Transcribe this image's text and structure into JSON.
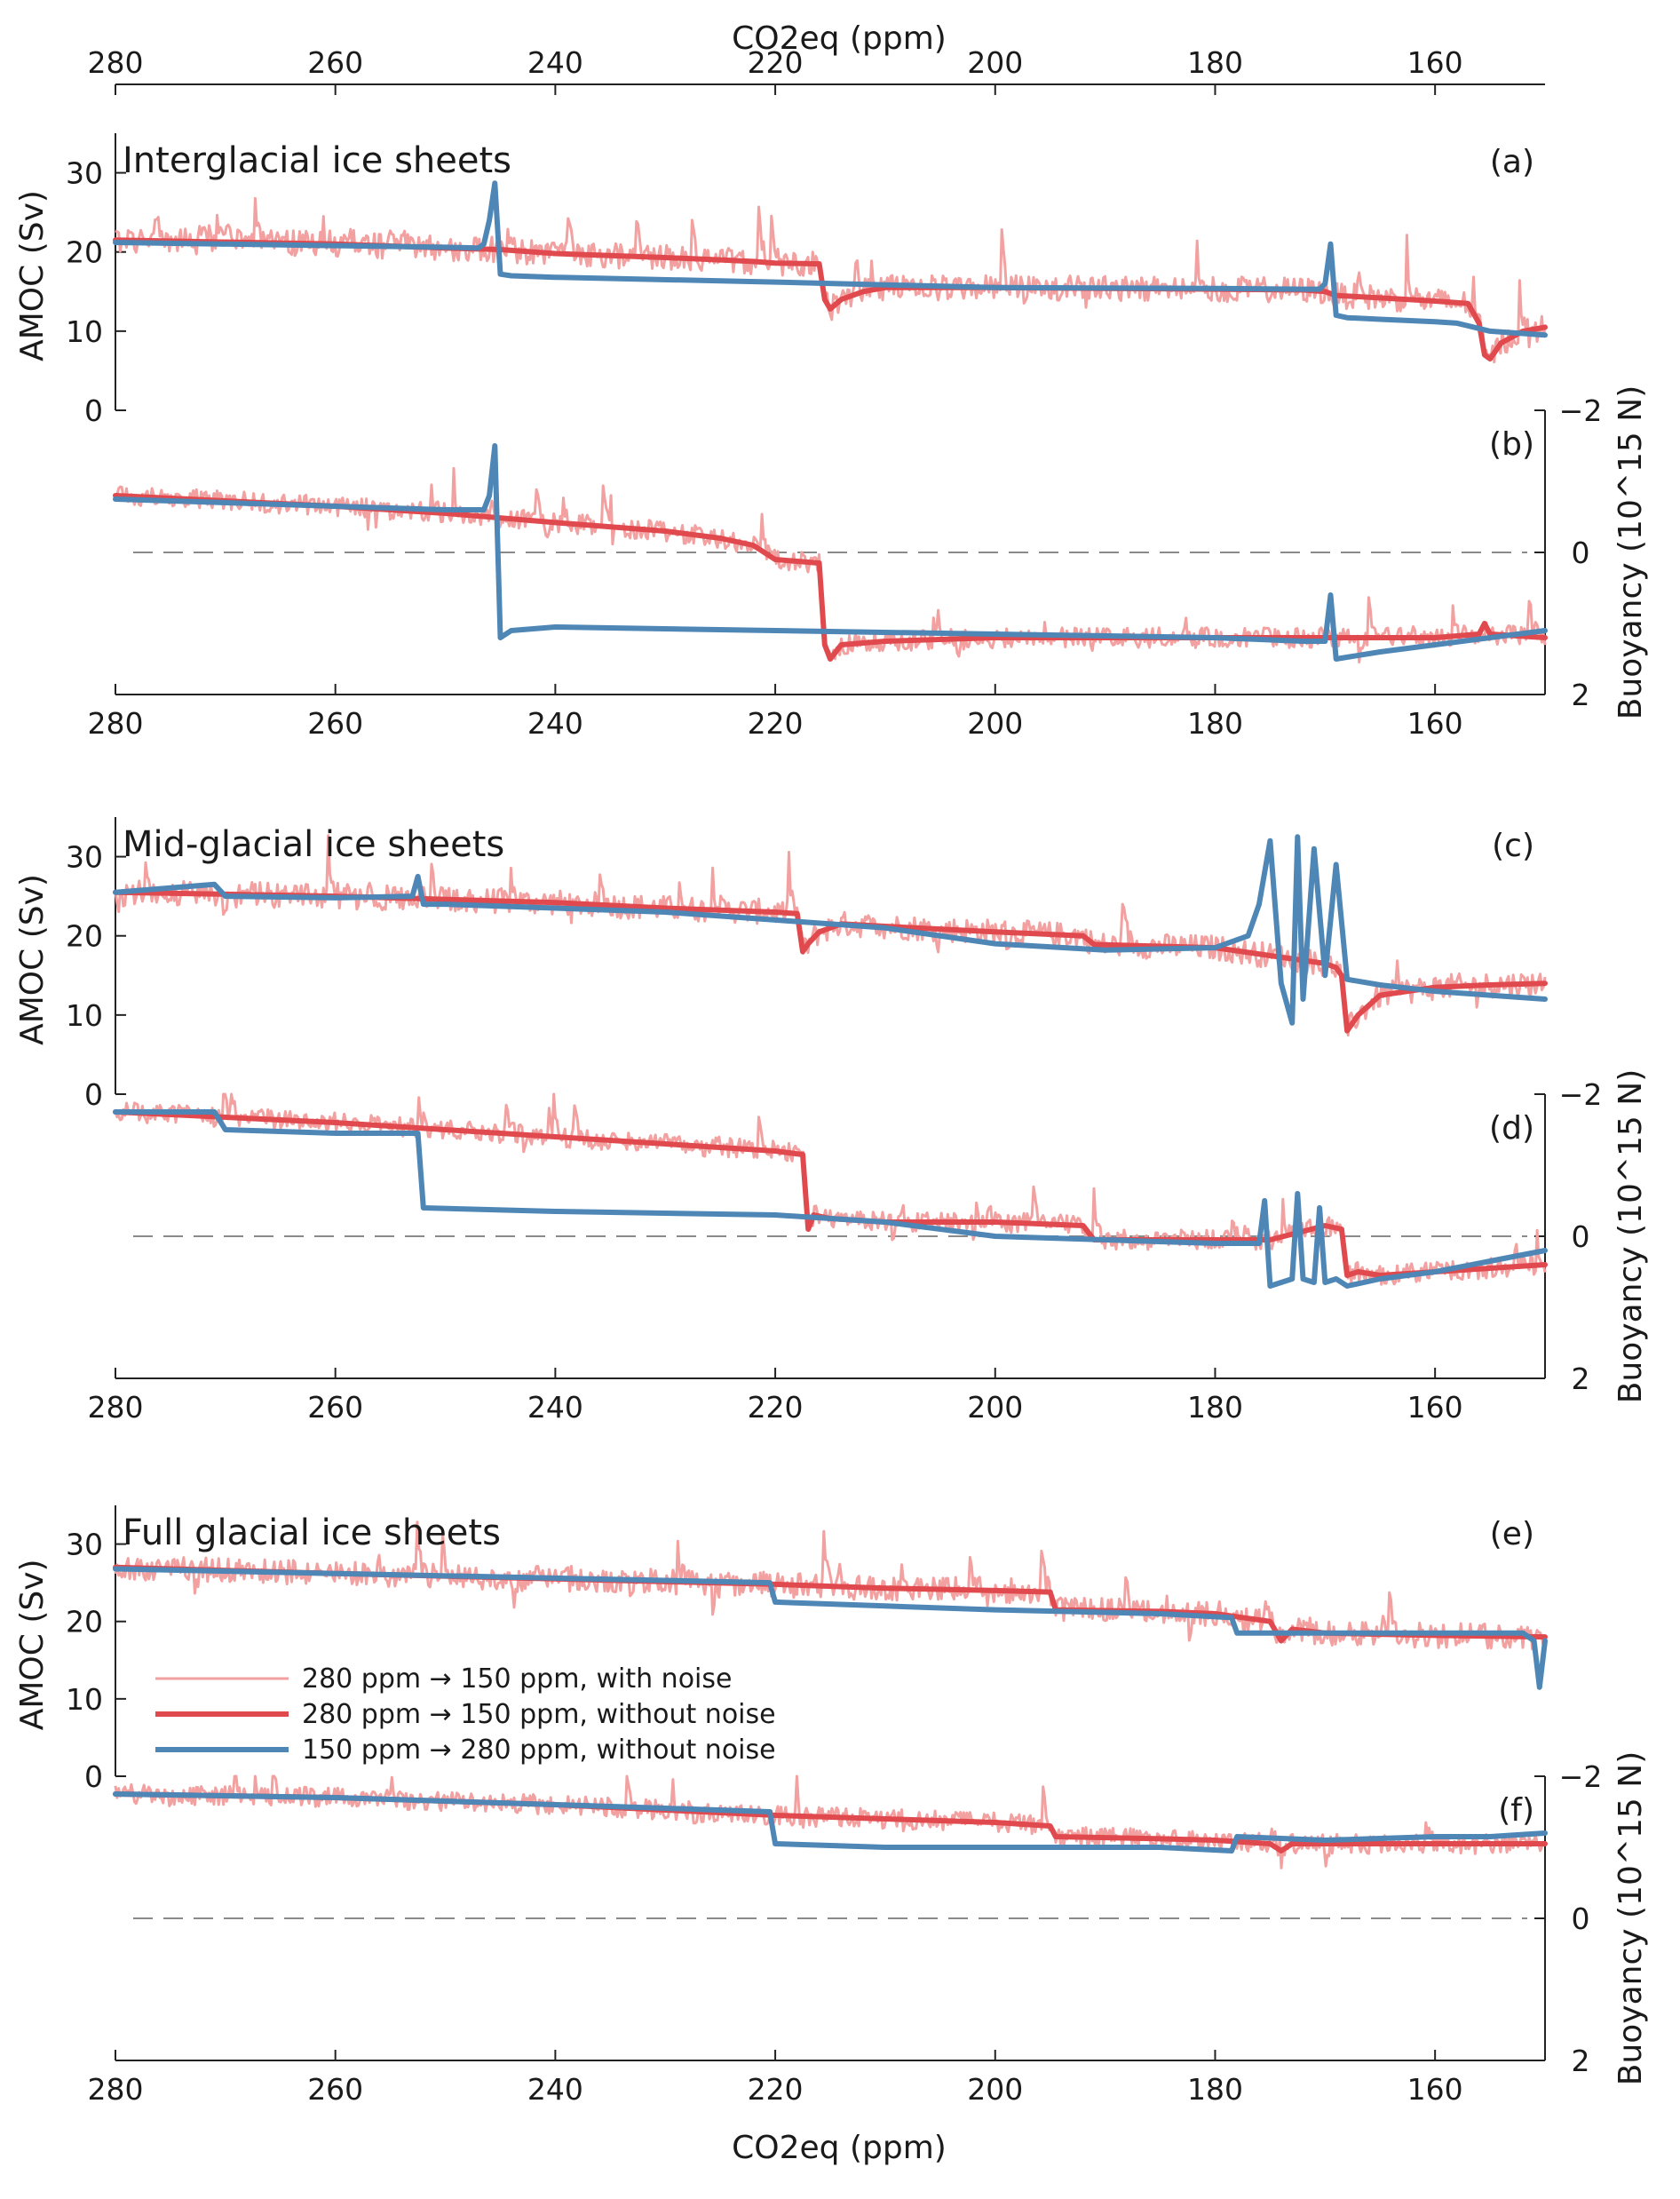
{
  "figure": {
    "top_xlabel": "CO2eq (ppm)",
    "bottom_xlabel": "CO2eq (ppm)",
    "amoc_ylabel": "AMOC (Sv)",
    "buoy_ylabel": "Buoyancy (10^15 N)"
  },
  "colors": {
    "noise": "#f2a0a0",
    "forward": "#e04a4e",
    "backward": "#4e86b6"
  },
  "legend": [
    {
      "label": "280 ppm → 150 ppm, with noise",
      "series": "noise"
    },
    {
      "label": "280 ppm → 150 ppm, without noise",
      "series": "forward"
    },
    {
      "label": "150 ppm → 280 ppm, without noise",
      "series": "backward"
    }
  ],
  "chart_data": [
    {
      "panel": "(a)",
      "type": "line",
      "title": "Interglacial ice sheets",
      "xlabel": "CO2eq (ppm)",
      "ylabel": "AMOC (Sv)",
      "xlim": [
        280,
        150
      ],
      "ylim": [
        0,
        35
      ],
      "xticks": [
        280,
        260,
        240,
        220,
        200,
        180,
        160
      ],
      "yticks": [
        0,
        10,
        20,
        30
      ],
      "series": [
        {
          "key": "forward",
          "name": "280 ppm → 150 ppm, without noise",
          "x": [
            280,
            260,
            250,
            245,
            240,
            230,
            225,
            222,
            220,
            216,
            215.5,
            215,
            214,
            212,
            210,
            200,
            190,
            180,
            172,
            170,
            169,
            165,
            160,
            157,
            156,
            155.5,
            155,
            154,
            152,
            150
          ],
          "y": [
            21.5,
            21,
            20.5,
            20.3,
            19.8,
            19.3,
            19,
            18.8,
            18.6,
            18.5,
            14,
            12.8,
            14,
            15,
            15.5,
            15.5,
            15.4,
            15.3,
            15.2,
            15,
            14.5,
            14.2,
            13.8,
            13.5,
            11,
            7,
            6.5,
            8.5,
            10,
            10.5
          ]
        },
        {
          "key": "backward",
          "name": "150 ppm → 280 ppm, without noise",
          "x": [
            150,
            155,
            158,
            160,
            165,
            168,
            169,
            169.5,
            170,
            170.5,
            172,
            180,
            200,
            220,
            240,
            244,
            245,
            245.5,
            246,
            246.5,
            247,
            250,
            260,
            280
          ],
          "y": [
            9.5,
            10,
            11,
            11.2,
            11.5,
            11.7,
            12,
            21,
            16,
            15.3,
            15.3,
            15.4,
            15.5,
            16.2,
            16.8,
            17,
            17.2,
            28.7,
            24,
            21,
            20.5,
            20.6,
            20.8,
            21.2
          ]
        }
      ]
    },
    {
      "panel": "(b)",
      "type": "line",
      "title": "",
      "xlabel": "",
      "ylabel": "Buoyancy (10^15 N)",
      "xlim": [
        280,
        150
      ],
      "ylim": [
        2,
        -2
      ],
      "xticks": [
        280,
        260,
        240,
        220,
        200,
        180,
        160
      ],
      "yticks": [
        -2,
        0,
        2
      ],
      "series": [
        {
          "key": "forward",
          "name": "280 ppm → 150 ppm, without noise",
          "x": [
            280,
            260,
            250,
            240,
            230,
            225,
            222,
            220,
            216,
            215.5,
            215,
            214,
            210,
            200,
            190,
            180,
            170,
            160,
            156,
            155.5,
            155,
            152,
            150
          ],
          "y": [
            -0.8,
            -0.65,
            -0.55,
            -0.42,
            -0.3,
            -0.2,
            -0.1,
            0.1,
            0.15,
            1.3,
            1.5,
            1.3,
            1.25,
            1.2,
            1.2,
            1.2,
            1.2,
            1.2,
            1.15,
            1.0,
            1.15,
            1.18,
            1.2
          ]
        },
        {
          "key": "backward",
          "name": "150 ppm → 280 ppm, without noise",
          "x": [
            150,
            155,
            160,
            165,
            169,
            169.5,
            170,
            170.5,
            172,
            180,
            200,
            220,
            240,
            244,
            245,
            245.5,
            246,
            246.5,
            250,
            260,
            280
          ],
          "y": [
            1.1,
            1.2,
            1.3,
            1.4,
            1.5,
            0.6,
            1.25,
            1.25,
            1.25,
            1.2,
            1.15,
            1.1,
            1.05,
            1.1,
            1.2,
            -1.5,
            -0.8,
            -0.6,
            -0.6,
            -0.65,
            -0.75
          ]
        }
      ]
    },
    {
      "panel": "(c)",
      "type": "line",
      "title": "Mid-glacial ice sheets",
      "xlabel": "",
      "ylabel": "AMOC (Sv)",
      "xlim": [
        280,
        150
      ],
      "ylim": [
        0,
        35
      ],
      "xticks": [
        280,
        260,
        240,
        220,
        200,
        180,
        160
      ],
      "yticks": [
        0,
        10,
        20,
        30
      ],
      "series": [
        {
          "key": "forward",
          "name": "280 ppm → 150 ppm, without noise",
          "x": [
            280,
            260,
            240,
            230,
            220,
            218,
            217.5,
            217,
            216,
            214,
            210,
            200,
            192,
            191,
            180,
            175,
            170,
            169,
            168.5,
            168,
            167,
            165,
            160,
            155,
            150
          ],
          "y": [
            25.5,
            25,
            24.2,
            23.5,
            23,
            22.8,
            18,
            19,
            20.5,
            21.5,
            21.2,
            20.5,
            20,
            18.9,
            18.5,
            17.5,
            16.5,
            16,
            15,
            8,
            10,
            12.5,
            13.5,
            13.8,
            14
          ]
        },
        {
          "key": "backward",
          "name": "150 ppm → 280 ppm, without noise",
          "x": [
            150,
            155,
            160,
            165,
            168,
            169,
            170,
            171,
            172,
            172.5,
            173,
            174,
            175,
            176,
            177,
            180,
            190,
            200,
            210,
            220,
            230,
            240,
            250,
            252,
            252.5,
            253,
            260,
            270,
            271,
            280
          ],
          "y": [
            12,
            12.5,
            13,
            13.8,
            14.5,
            29,
            15,
            31,
            12,
            32.5,
            9,
            14,
            32,
            24,
            20,
            18.5,
            18.2,
            19,
            21,
            22,
            23,
            23.5,
            24,
            24,
            27.5,
            25,
            24.8,
            25,
            26.5,
            25.5
          ]
        }
      ]
    },
    {
      "panel": "(d)",
      "type": "line",
      "title": "",
      "xlabel": "",
      "ylabel": "Buoyancy (10^15 N)",
      "xlim": [
        280,
        150
      ],
      "ylim": [
        2,
        -2
      ],
      "xticks": [
        280,
        260,
        240,
        220,
        200,
        180,
        160
      ],
      "yticks": [
        -2,
        0,
        2
      ],
      "series": [
        {
          "key": "forward",
          "name": "280 ppm → 150 ppm, without noise",
          "x": [
            280,
            260,
            240,
            220,
            217.5,
            217,
            216.5,
            215,
            210,
            200,
            192,
            191,
            180,
            175,
            170,
            168.5,
            168,
            167,
            165,
            160,
            155,
            150
          ],
          "y": [
            -1.75,
            -1.6,
            -1.4,
            -1.2,
            -1.15,
            -0.1,
            -0.3,
            -0.25,
            -0.2,
            -0.2,
            -0.15,
            0.05,
            0.05,
            0.05,
            -0.15,
            -0.1,
            0.55,
            0.5,
            0.55,
            0.5,
            0.45,
            0.4
          ]
        },
        {
          "key": "backward",
          "name": "150 ppm → 280 ppm, without noise",
          "x": [
            150,
            155,
            160,
            165,
            168,
            169,
            170,
            170.5,
            171,
            172,
            172.5,
            173,
            175,
            175.5,
            176,
            180,
            190,
            200,
            210,
            220,
            240,
            252,
            252.5,
            253,
            260,
            270,
            271,
            280
          ],
          "y": [
            0.2,
            0.35,
            0.5,
            0.6,
            0.7,
            0.6,
            0.65,
            -0.4,
            0.65,
            0.6,
            -0.6,
            0.6,
            0.7,
            -0.5,
            0.1,
            0.1,
            0.05,
            0,
            -0.2,
            -0.3,
            -0.35,
            -0.4,
            -1.45,
            -1.45,
            -1.45,
            -1.5,
            -1.75,
            -1.75
          ]
        }
      ]
    },
    {
      "panel": "(e)",
      "type": "line",
      "title": "Full glacial ice sheets",
      "xlabel": "",
      "ylabel": "AMOC (Sv)",
      "xlim": [
        280,
        150
      ],
      "ylim": [
        0,
        35
      ],
      "xticks": [
        280,
        260,
        240,
        220,
        200,
        180,
        160
      ],
      "yticks": [
        0,
        10,
        20,
        30
      ],
      "series": [
        {
          "key": "forward",
          "name": "280 ppm → 150 ppm, without noise",
          "x": [
            280,
            260,
            240,
            220,
            210,
            200,
            195,
            194.5,
            185,
            180,
            175,
            174,
            173,
            170,
            160,
            150
          ],
          "y": [
            27,
            26.2,
            25.5,
            24.8,
            24.3,
            24,
            23.8,
            21.5,
            21.3,
            21,
            20,
            17.5,
            19,
            18.5,
            18.2,
            18
          ]
        },
        {
          "key": "backward",
          "name": "150 ppm → 280 ppm, without noise",
          "x": [
            150,
            150.5,
            151,
            152,
            160,
            170,
            178,
            178.5,
            185,
            200,
            210,
            220,
            220.5,
            230,
            240,
            260,
            280
          ],
          "y": [
            17.5,
            11.5,
            17.5,
            18.5,
            18.5,
            18.5,
            18.5,
            20.5,
            21,
            21.5,
            22,
            22.5,
            25,
            25.3,
            25.6,
            26.2,
            26.8
          ]
        }
      ]
    },
    {
      "panel": "(f)",
      "type": "line",
      "title": "",
      "xlabel": "CO2eq (ppm)",
      "ylabel": "Buoyancy (10^15 N)",
      "xlim": [
        280,
        150
      ],
      "ylim": [
        2,
        -2
      ],
      "xticks": [
        280,
        260,
        240,
        220,
        200,
        180,
        160
      ],
      "yticks": [
        -2,
        0,
        2
      ],
      "series": [
        {
          "key": "forward",
          "name": "280 ppm → 150 ppm, without noise",
          "x": [
            280,
            260,
            240,
            220,
            210,
            200,
            195,
            194.5,
            185,
            180,
            175,
            174,
            173,
            170,
            160,
            150
          ],
          "y": [
            -1.75,
            -1.7,
            -1.6,
            -1.45,
            -1.4,
            -1.35,
            -1.3,
            -1.15,
            -1.12,
            -1.1,
            -1.05,
            -0.95,
            -1.05,
            -1.05,
            -1.05,
            -1.05
          ]
        },
        {
          "key": "backward",
          "name": "150 ppm → 280 ppm, without noise",
          "x": [
            150,
            155,
            160,
            170,
            178,
            178.5,
            185,
            200,
            210,
            220,
            220.5,
            230,
            240,
            260,
            280
          ],
          "y": [
            -1.2,
            -1.15,
            -1.15,
            -1.1,
            -1.15,
            -0.95,
            -1.0,
            -1.0,
            -1.0,
            -1.05,
            -1.5,
            -1.55,
            -1.6,
            -1.7,
            -1.75
          ]
        }
      ]
    }
  ]
}
